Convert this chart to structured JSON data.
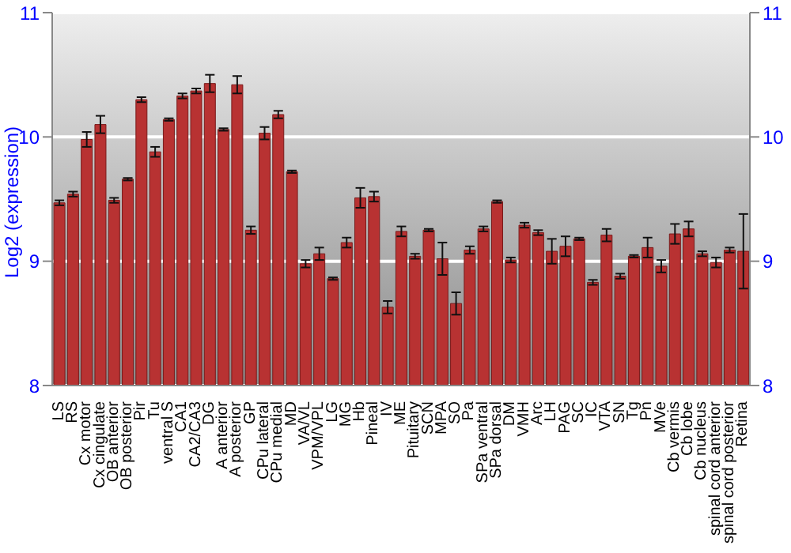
{
  "chart_data": {
    "type": "bar",
    "ylabel": "Log2 (expression)",
    "categories": [
      "LS",
      "RS",
      "Cx motor",
      "Cx cingulate",
      "OB anterior",
      "OB posterior",
      "Pir",
      "Tu",
      "ventral S",
      "CA1",
      "CA2/CA3",
      "DG",
      "A anterior",
      "A posterior",
      "GP",
      "CPu lateral",
      "CPu medial",
      "MD",
      "VA/VL",
      "VPM/VPL",
      "LG",
      "MG",
      "Hb",
      "Pineal",
      "IV",
      "ME",
      "Pituitary",
      "SCN",
      "MPA",
      "SO",
      "Pa",
      "SPa ventral",
      "SPa dorsal",
      "DM",
      "VMH",
      "Arc",
      "LH",
      "PAG",
      "SC",
      "IC",
      "VTA",
      "SN",
      "Tg",
      "Pn",
      "MVe",
      "Cb vermis",
      "Cb lobe",
      "Cb nucleus",
      "spinal cord anterior",
      "spinal cord posterior",
      "Retina"
    ],
    "values": [
      9.47,
      9.54,
      9.98,
      10.1,
      9.49,
      9.66,
      10.3,
      9.88,
      10.14,
      10.33,
      10.37,
      10.43,
      10.06,
      10.42,
      9.25,
      10.03,
      10.18,
      9.72,
      8.98,
      9.06,
      8.86,
      9.15,
      9.51,
      9.52,
      8.63,
      9.24,
      9.04,
      9.25,
      9.02,
      8.66,
      9.09,
      9.26,
      9.48,
      9.01,
      9.29,
      9.23,
      9.08,
      9.12,
      9.18,
      8.83,
      9.21,
      8.88,
      9.04,
      9.11,
      8.96,
      9.22,
      9.26,
      9.06,
      8.99,
      9.09,
      9.08
    ],
    "errors": [
      0.02,
      0.02,
      0.06,
      0.07,
      0.02,
      0.01,
      0.02,
      0.04,
      0.01,
      0.02,
      0.02,
      0.07,
      0.01,
      0.07,
      0.03,
      0.05,
      0.03,
      0.01,
      0.03,
      0.05,
      0.01,
      0.04,
      0.08,
      0.04,
      0.05,
      0.04,
      0.02,
      0.01,
      0.13,
      0.09,
      0.03,
      0.02,
      0.01,
      0.02,
      0.02,
      0.02,
      0.1,
      0.08,
      0.01,
      0.02,
      0.05,
      0.02,
      0.01,
      0.08,
      0.05,
      0.08,
      0.06,
      0.02,
      0.04,
      0.02,
      0.3
    ],
    "color": "#b83232",
    "ylim": [
      8,
      11
    ],
    "yticks": [
      8,
      9,
      10,
      11
    ],
    "y2lim": [
      8,
      11
    ],
    "y2ticks": [
      8,
      9,
      10,
      11
    ],
    "grid": "y",
    "legend": false
  }
}
